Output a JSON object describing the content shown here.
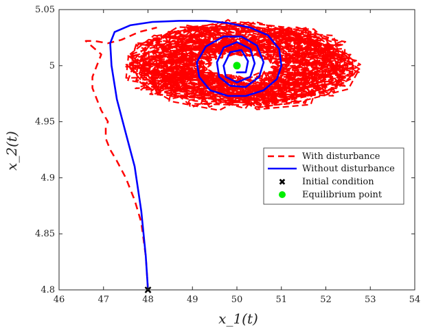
{
  "chart_data": {
    "type": "line",
    "title": "",
    "xlabel": "x_1(t)",
    "ylabel": "x_2(t)",
    "xlim": [
      46,
      54
    ],
    "ylim": [
      4.8,
      5.05
    ],
    "xticks": [
      46,
      47,
      48,
      49,
      50,
      51,
      52,
      53,
      54
    ],
    "yticks": [
      4.8,
      4.85,
      4.9,
      4.95,
      5,
      5.05
    ],
    "xtick_labels": [
      "46",
      "47",
      "48",
      "49",
      "50",
      "51",
      "52",
      "53",
      "54"
    ],
    "ytick_labels": [
      "4.8",
      "4.85",
      "4.9",
      "4.95",
      "5",
      "5.05"
    ],
    "grid": false,
    "legend_position": "right",
    "series": [
      {
        "name": "With disturbance",
        "style": "dashed",
        "color": "#ff0000",
        "x": [
          48.0,
          47.95,
          47.85,
          47.7,
          47.5,
          47.3,
          47.15,
          47.05,
          47.05,
          47.1,
          46.95,
          46.85,
          46.75,
          46.75,
          46.85,
          46.95,
          46.6,
          46.8,
          47.1,
          47.4,
          47.8,
          48.2
        ],
        "y": [
          4.8,
          4.83,
          4.86,
          4.88,
          4.9,
          4.915,
          4.925,
          4.935,
          4.945,
          4.95,
          4.96,
          4.97,
          4.98,
          4.99,
          5.0,
          5.01,
          5.022,
          5.022,
          5.02,
          5.023,
          5.03,
          5.034
        ],
        "oscillation_band": {
          "x_range": [
            47.5,
            53.0
          ],
          "y_range": [
            4.96,
            5.04
          ]
        }
      },
      {
        "name": "Without disturbance",
        "style": "solid",
        "color": "#0000ff",
        "x": [
          48.0,
          47.95,
          47.85,
          47.7,
          47.5,
          47.3,
          47.18,
          47.15,
          47.25,
          47.6,
          48.1,
          48.7,
          49.3,
          49.8,
          50.3,
          50.7,
          50.95,
          51.0,
          50.9,
          50.6,
          50.2,
          49.8,
          49.4,
          49.15,
          49.1,
          49.3,
          49.7,
          50.1,
          50.45,
          50.6,
          50.5,
          50.2,
          49.85,
          49.6,
          49.55,
          49.7,
          50.0,
          50.3,
          50.4,
          50.3,
          50.0,
          49.75,
          49.7,
          49.85,
          50.1,
          50.25,
          50.2,
          50.0
        ],
        "y": [
          4.8,
          4.83,
          4.87,
          4.91,
          4.94,
          4.97,
          5.0,
          5.02,
          5.03,
          5.036,
          5.039,
          5.04,
          5.04,
          5.038,
          5.034,
          5.027,
          5.015,
          5.0,
          4.988,
          4.978,
          4.973,
          4.973,
          4.978,
          4.99,
          5.003,
          5.017,
          5.026,
          5.026,
          5.018,
          5.003,
          4.99,
          4.981,
          4.982,
          4.99,
          5.003,
          5.016,
          5.021,
          5.015,
          5.002,
          4.99,
          4.985,
          4.99,
          5.0,
          5.012,
          5.014,
          5.004,
          4.994,
          4.994
        ]
      },
      {
        "name": "Initial condition",
        "style": "marker-x",
        "color": "#000000",
        "x": [
          48
        ],
        "y": [
          4.8
        ]
      },
      {
        "name": "Equilibrium point",
        "style": "marker-dot",
        "color": "#00ee00",
        "x": [
          50
        ],
        "y": [
          5.0
        ]
      }
    ]
  }
}
